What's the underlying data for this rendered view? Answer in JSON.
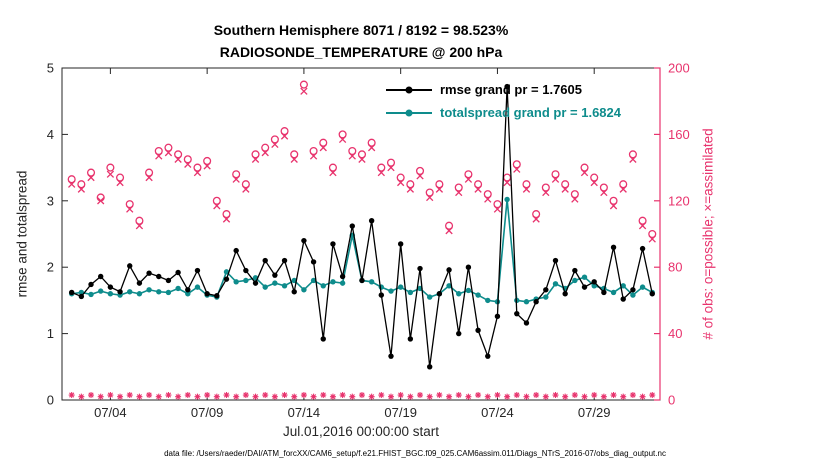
{
  "caption": "data file: /Users/raeder/DAI/ATM_forcXX/CAM6_setup/f.e21.FHIST_BGC.f09_025.CAM6assim.011/Diags_NTrS_2016-07/obs_diag_output.nc",
  "colors": {
    "rmse": "#000000",
    "totalspread": "#0e8c8c",
    "obs": "#e8336d",
    "axis_text": "#262626"
  },
  "legend": {
    "items": [
      {
        "label": "rmse grand pr = 1.7605",
        "color": "#000000"
      },
      {
        "label": "totalspread grand pr = 1.6824",
        "color": "#0e8c8c"
      }
    ]
  },
  "chart_data": {
    "type": "line",
    "title": "Southern Hemisphere 8071 / 8192 = 98.523%",
    "subtitle": "RADIOSONDE_TEMPERATURE @ 200 hPa",
    "xlabel": "Jul.01,2016 00:00:00 start",
    "grid": false,
    "legend_position": "top-center-inside",
    "x_unit": "days since Jul 1, 2016 00:00 UTC",
    "x_range": [
      0.5,
      31.4
    ],
    "x_ticks": [
      {
        "pos": 3,
        "label": "07/04"
      },
      {
        "pos": 8,
        "label": "07/09"
      },
      {
        "pos": 13,
        "label": "07/14"
      },
      {
        "pos": 18,
        "label": "07/19"
      },
      {
        "pos": 23,
        "label": "07/24"
      },
      {
        "pos": 28,
        "label": "07/29"
      }
    ],
    "y_left": {
      "label": "rmse and totalspread",
      "min": 0,
      "max": 5,
      "ticks": [
        0,
        1,
        2,
        3,
        4,
        5
      ]
    },
    "y_right": {
      "label": "# of obs: o=possible; ×=assimilated",
      "min": 0,
      "max": 200,
      "ticks": [
        0,
        40,
        80,
        120,
        160,
        200
      ]
    },
    "x": [
      1,
      1.5,
      2,
      2.5,
      3,
      3.5,
      4,
      4.5,
      5,
      5.5,
      6,
      6.5,
      7,
      7.5,
      8,
      8.5,
      9,
      9.5,
      10,
      10.5,
      11,
      11.5,
      12,
      12.5,
      13,
      13.5,
      14,
      14.5,
      15,
      15.5,
      16,
      16.5,
      17,
      17.5,
      18,
      18.5,
      19,
      19.5,
      20,
      20.5,
      21,
      21.5,
      22,
      22.5,
      23,
      23.5,
      24,
      24.5,
      25,
      25.5,
      26,
      26.5,
      27,
      27.5,
      28,
      28.5,
      29,
      29.5,
      30,
      30.5,
      31
    ],
    "series": [
      {
        "name": "obs_possible",
        "axis": "right",
        "color": "#e8336d",
        "marker": "open-circle",
        "line": false,
        "values": [
          133,
          130,
          137,
          122,
          140,
          134,
          118,
          108,
          137,
          150,
          152,
          148,
          145,
          140,
          144,
          120,
          112,
          136,
          130,
          148,
          152,
          157,
          162,
          148,
          190,
          150,
          155,
          140,
          160,
          150,
          148,
          155,
          140,
          143,
          134,
          130,
          138,
          125,
          130,
          105,
          128,
          136,
          130,
          124,
          118,
          134,
          142,
          130,
          112,
          128,
          136,
          130,
          124,
          140,
          134,
          128,
          120,
          130,
          148,
          108,
          100
        ]
      },
      {
        "name": "obs_assimilated",
        "axis": "right",
        "color": "#e8336d",
        "marker": "x",
        "line": false,
        "values": [
          130,
          127,
          134,
          120,
          136,
          131,
          115,
          105,
          134,
          147,
          149,
          145,
          142,
          137,
          141,
          117,
          109,
          133,
          127,
          145,
          149,
          154,
          159,
          145,
          186,
          147,
          152,
          137,
          157,
          147,
          145,
          152,
          137,
          140,
          131,
          127,
          135,
          122,
          127,
          102,
          125,
          133,
          127,
          121,
          115,
          131,
          139,
          127,
          109,
          125,
          133,
          127,
          121,
          137,
          131,
          125,
          117,
          127,
          145,
          105,
          97
        ]
      },
      {
        "name": "obs_near_zero",
        "axis": "right",
        "color": "#e8336d",
        "marker": "asterisk",
        "line": false,
        "values": [
          3,
          2,
          3,
          2,
          3,
          2,
          3,
          2,
          3,
          2,
          3,
          2,
          3,
          2,
          3,
          2,
          3,
          2,
          3,
          2,
          3,
          2,
          3,
          2,
          3,
          2,
          3,
          2,
          3,
          2,
          3,
          2,
          3,
          2,
          3,
          2,
          3,
          2,
          3,
          2,
          3,
          2,
          3,
          2,
          3,
          2,
          3,
          2,
          3,
          2,
          3,
          2,
          3,
          2,
          3,
          2,
          3,
          2,
          3,
          2,
          3
        ]
      },
      {
        "name": "totalspread",
        "axis": "left",
        "color": "#0e8c8c",
        "marker": "filled-circle",
        "line": true,
        "legend_label": "totalspread grand pr = 1.6824",
        "grand_pr": 1.6824,
        "values": [
          1.6,
          1.62,
          1.59,
          1.64,
          1.6,
          1.58,
          1.63,
          1.6,
          1.66,
          1.63,
          1.62,
          1.68,
          1.6,
          1.7,
          1.58,
          1.55,
          1.93,
          1.78,
          1.8,
          1.84,
          1.7,
          1.76,
          1.72,
          1.8,
          1.66,
          1.8,
          1.72,
          1.78,
          1.76,
          2.48,
          1.8,
          1.78,
          1.7,
          1.64,
          1.7,
          1.62,
          1.68,
          1.55,
          1.6,
          1.72,
          1.6,
          1.65,
          1.58,
          1.5,
          1.48,
          3.02,
          1.5,
          1.48,
          1.52,
          1.55,
          1.75,
          1.68,
          1.8,
          1.85,
          1.72,
          1.68,
          1.62,
          1.72,
          1.58,
          1.7,
          1.62
        ]
      },
      {
        "name": "rmse",
        "axis": "left",
        "color": "#000000",
        "marker": "filled-circle",
        "line": true,
        "legend_label": "rmse grand pr = 1.7605",
        "grand_pr": 1.7605,
        "values": [
          1.62,
          1.56,
          1.74,
          1.86,
          1.7,
          1.63,
          2.02,
          1.76,
          1.91,
          1.86,
          1.8,
          1.92,
          1.66,
          1.95,
          1.6,
          1.57,
          1.82,
          2.25,
          1.95,
          1.76,
          2.1,
          1.88,
          2.1,
          1.63,
          2.4,
          2.08,
          0.92,
          2.35,
          1.86,
          2.62,
          1.8,
          2.7,
          1.58,
          0.66,
          2.35,
          0.92,
          1.98,
          0.5,
          1.6,
          1.96,
          1.0,
          2.0,
          1.05,
          0.66,
          1.26,
          4.72,
          1.3,
          1.16,
          1.48,
          1.66,
          2.1,
          1.6,
          1.95,
          1.7,
          1.78,
          1.62,
          2.3,
          1.52,
          1.66,
          2.28,
          1.6
        ]
      }
    ]
  }
}
